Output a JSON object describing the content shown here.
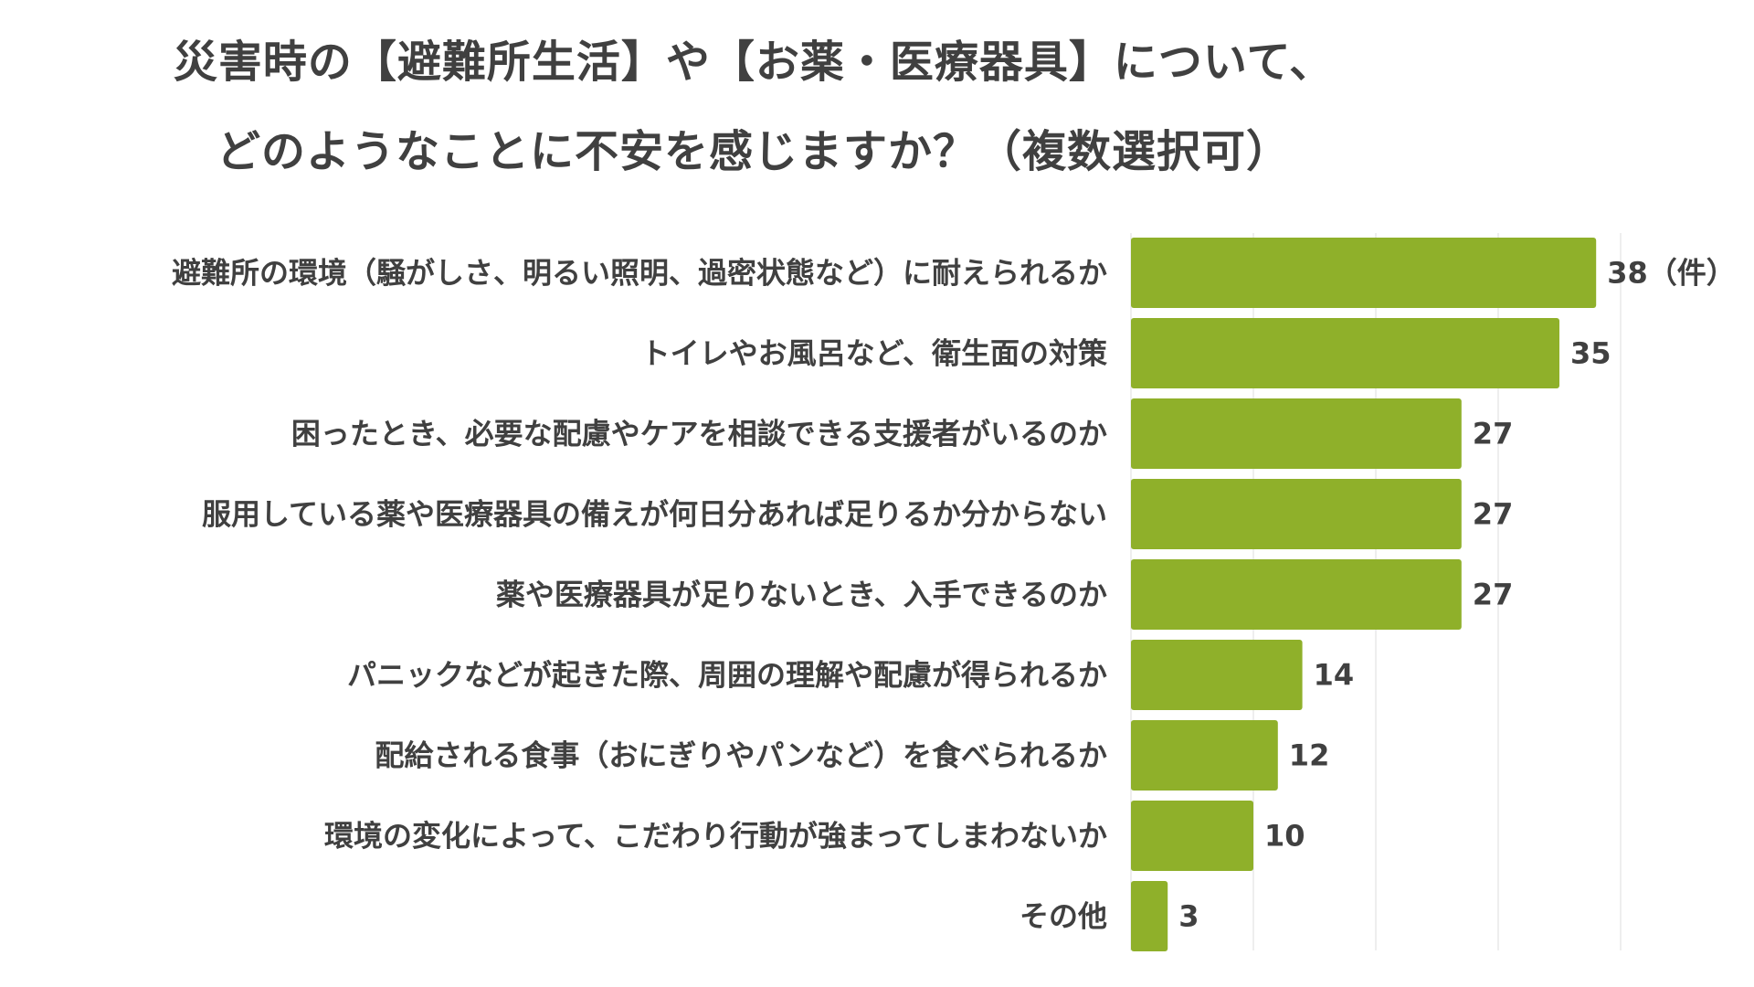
{
  "chart_data": {
    "type": "bar",
    "orientation": "horizontal",
    "title_lines": [
      "災害時の【避難所生活】や【お薬・医療器具】について、",
      "どのようなことに不安を感じますか？（複数選択可）"
    ],
    "categories": [
      "避難所の環境（騒がしさ、明るい照明、過密状態など）に耐えられるか",
      "トイレやお風呂など、衛生面の対策",
      "困ったとき、必要な配慮やケアを相談できる支援者がいるのか",
      "服用している薬や医療器具の備えが何日分あれば足りるか分からない",
      "薬や医療器具が足りないとき、入手できるのか",
      "パニックなどが起きた際、周囲の理解や配慮が得られるか",
      "配給される食事（おにぎりやパンなど）を食べられるか",
      "環境の変化によって、こだわり行動が強まってしまわないか",
      "その他"
    ],
    "values": [
      38,
      35,
      27,
      27,
      27,
      14,
      12,
      10,
      3
    ],
    "value_labels": [
      "38（件）",
      "35",
      "27",
      "27",
      "27",
      "14",
      "12",
      "10",
      "3"
    ],
    "xlim": [
      0,
      40
    ],
    "grid": true,
    "bar_color": "#8fb02a",
    "text_color": "#404040"
  }
}
